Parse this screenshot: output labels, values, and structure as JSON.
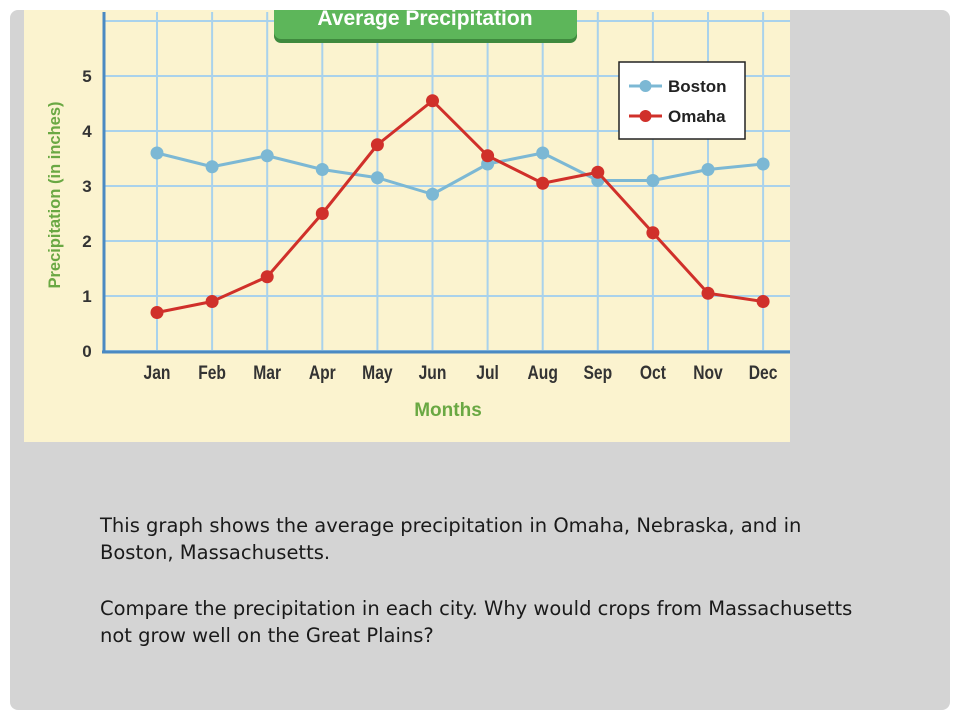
{
  "chart_data": {
    "type": "line",
    "title": "Average Precipitation",
    "xlabel": "Months",
    "ylabel": "Precipitation (in inches)",
    "categories": [
      "Jan",
      "Feb",
      "Mar",
      "Apr",
      "May",
      "Jun",
      "Jul",
      "Aug",
      "Sep",
      "Oct",
      "Nov",
      "Dec"
    ],
    "ylim": [
      0,
      5
    ],
    "yticks": [
      0,
      1,
      2,
      3,
      4,
      5
    ],
    "grid": true,
    "legend_position": "top-right",
    "series": [
      {
        "name": "Boston",
        "color": "#7cb8d4",
        "values": [
          3.6,
          3.35,
          3.55,
          3.3,
          3.15,
          2.85,
          3.4,
          3.6,
          3.1,
          3.1,
          3.3,
          3.4
        ]
      },
      {
        "name": "Omaha",
        "color": "#d0302a",
        "values": [
          0.7,
          0.9,
          1.35,
          2.5,
          3.75,
          4.55,
          3.55,
          3.05,
          3.25,
          2.15,
          1.05,
          0.9
        ]
      }
    ]
  },
  "colors": {
    "grid": "#a9d2ec",
    "axis": "#4a89c2",
    "title_bg": "#5db65a",
    "label_green": "#6aa843",
    "panel_bg": "#fbf3cf"
  },
  "text": {
    "paragraph1": "This graph shows the average precipitation in Omaha, Nebraska, and in Boston, Massachusetts.",
    "paragraph2": "Compare the precipitation in each city. Why would crops from Massachusetts not grow well on the Great Plains?"
  }
}
